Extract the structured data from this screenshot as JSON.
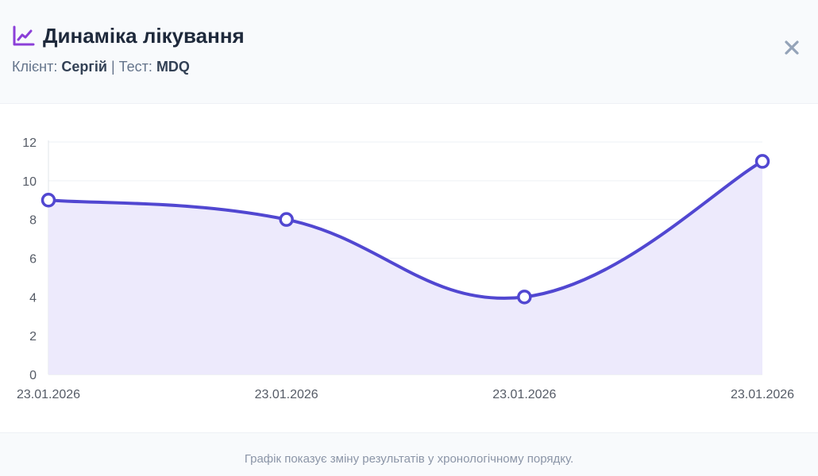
{
  "header": {
    "title": "Динаміка лікування",
    "client_label": "Клієнт:",
    "client_name": "Сергій",
    "separator": "|",
    "test_label": "Тест:",
    "test_name": "MDQ",
    "icon": "chart-line-icon",
    "close_icon": "close-icon"
  },
  "footer": {
    "note": "Графік показує зміну результатів у хронологічному порядку."
  },
  "colors": {
    "accent": "#5147d1",
    "accent_fill": "#ece9fc",
    "icon_purple": "#8b3fd8"
  },
  "chart_data": {
    "type": "line",
    "x": [
      "23.01.2026",
      "23.01.2026",
      "23.01.2026",
      "23.01.2026"
    ],
    "series": [
      {
        "values": [
          9,
          8,
          4,
          11
        ]
      }
    ],
    "ylim": [
      0,
      12
    ],
    "yticks": [
      0,
      2,
      4,
      6,
      8,
      10,
      12
    ],
    "grid": true,
    "fill": true,
    "smooth": true
  }
}
